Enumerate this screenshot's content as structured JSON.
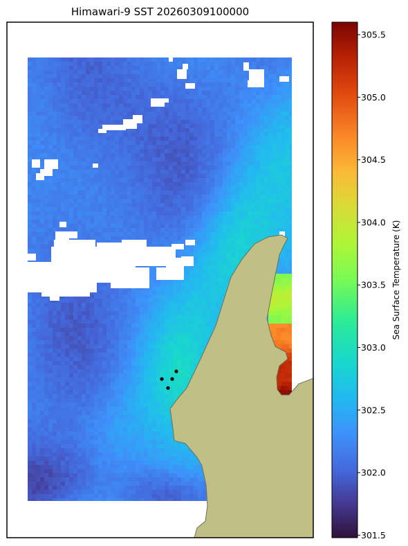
{
  "chart_data": {
    "type": "heatmap",
    "title": "Himawari-9 SST 20260309100000",
    "colorbar": {
      "label": "Sea Surface Temperature (K)",
      "range": [
        301.48,
        305.6
      ],
      "ticks": [
        "301.5",
        "302.0",
        "302.5",
        "303.0",
        "303.5",
        "304.0",
        "304.5",
        "305.0",
        "305.5"
      ],
      "colormap": "turbo"
    },
    "land_color": "#c0bf86",
    "grid": false,
    "markers": {
      "count": 4,
      "color": "#000000"
    }
  }
}
